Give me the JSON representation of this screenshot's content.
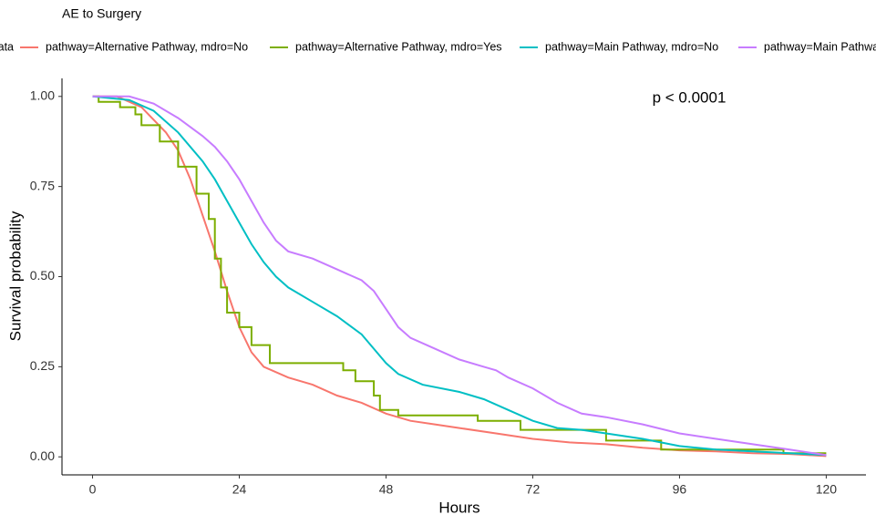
{
  "chart_data": {
    "type": "line",
    "title": "AE to Surgery",
    "legend_title": "Strata",
    "x_label": "Hours",
    "y_label": "Survival probability",
    "annotation": "p < 0.0001",
    "xlim": [
      -5,
      126.5
    ],
    "ylim": [
      -0.05,
      1.05
    ],
    "xticks": [
      0,
      24,
      48,
      72,
      96,
      120
    ],
    "yticks": [
      {
        "value": 0,
        "label": "0.00"
      },
      {
        "value": 0.25,
        "label": "0.25"
      },
      {
        "value": 0.5,
        "label": "0.50"
      },
      {
        "value": 0.75,
        "label": "0.75"
      },
      {
        "value": 1,
        "label": "1.00"
      }
    ],
    "grid": false,
    "legend": "top",
    "series": [
      {
        "name": "pathway=Alternative Pathway, mdro=No",
        "color": "#F8766D",
        "x": [
          0,
          4,
          8,
          12,
          14,
          16,
          18,
          20,
          22,
          24,
          26,
          28,
          32,
          36,
          40,
          44,
          48,
          52,
          56,
          60,
          66,
          72,
          78,
          84,
          90,
          96,
          102,
          108,
          114,
          120
        ],
        "values": [
          1,
          1,
          0.97,
          0.9,
          0.85,
          0.77,
          0.67,
          0.57,
          0.46,
          0.36,
          0.29,
          0.25,
          0.22,
          0.2,
          0.17,
          0.15,
          0.12,
          0.1,
          0.09,
          0.08,
          0.065,
          0.05,
          0.04,
          0.035,
          0.025,
          0.018,
          0.015,
          0.01,
          0.008,
          0.002
        ]
      },
      {
        "name": "pathway=Alternative Pathway, mdro=Yes",
        "color": "#7CAE00",
        "x": [
          0,
          1,
          1,
          4.5,
          4.5,
          7,
          7,
          8,
          8,
          11,
          11,
          14,
          14,
          17,
          17,
          19,
          19,
          20,
          20,
          21,
          21,
          22,
          22,
          24,
          24,
          26,
          26,
          29,
          29,
          41,
          41,
          43,
          43,
          46,
          46,
          47,
          47,
          50,
          50,
          63,
          63,
          70,
          70,
          84,
          84,
          93,
          93,
          113,
          113,
          120
        ],
        "values": [
          1,
          1,
          0.985,
          0.985,
          0.97,
          0.97,
          0.95,
          0.95,
          0.92,
          0.92,
          0.875,
          0.875,
          0.805,
          0.805,
          0.73,
          0.73,
          0.66,
          0.66,
          0.55,
          0.55,
          0.47,
          0.47,
          0.4,
          0.4,
          0.36,
          0.36,
          0.31,
          0.31,
          0.26,
          0.26,
          0.24,
          0.24,
          0.21,
          0.21,
          0.17,
          0.17,
          0.13,
          0.13,
          0.115,
          0.115,
          0.1,
          0.1,
          0.075,
          0.075,
          0.045,
          0.045,
          0.02,
          0.02,
          0.01,
          0.01
        ]
      },
      {
        "name": "pathway=Main Pathway, mdro=No",
        "color": "#00BFC4",
        "x": [
          0,
          6,
          10,
          14,
          18,
          20,
          22,
          24,
          26,
          28,
          30,
          32,
          36,
          40,
          44,
          46,
          48,
          50,
          54,
          60,
          64,
          68,
          72,
          76,
          80,
          84,
          90,
          96,
          102,
          108,
          114,
          120
        ],
        "values": [
          1,
          0.99,
          0.96,
          0.9,
          0.82,
          0.77,
          0.71,
          0.65,
          0.59,
          0.54,
          0.5,
          0.47,
          0.43,
          0.39,
          0.34,
          0.3,
          0.26,
          0.23,
          0.2,
          0.18,
          0.16,
          0.13,
          0.1,
          0.08,
          0.075,
          0.065,
          0.05,
          0.03,
          0.02,
          0.015,
          0.01,
          0.005
        ]
      },
      {
        "name": "pathway=Main Pathway, mdro=Yes",
        "color": "#C77CFF",
        "x": [
          0,
          6,
          10,
          14,
          18,
          20,
          22,
          24,
          26,
          28,
          30,
          32,
          36,
          40,
          44,
          46,
          48,
          50,
          52,
          56,
          60,
          64,
          66,
          68,
          72,
          76,
          80,
          84,
          90,
          96,
          102,
          108,
          114,
          118,
          120
        ],
        "values": [
          1,
          1,
          0.98,
          0.94,
          0.89,
          0.86,
          0.82,
          0.77,
          0.71,
          0.65,
          0.6,
          0.57,
          0.55,
          0.52,
          0.49,
          0.46,
          0.41,
          0.36,
          0.33,
          0.3,
          0.27,
          0.25,
          0.24,
          0.22,
          0.19,
          0.15,
          0.12,
          0.11,
          0.09,
          0.065,
          0.05,
          0.035,
          0.02,
          0.01,
          0.005
        ]
      }
    ]
  }
}
